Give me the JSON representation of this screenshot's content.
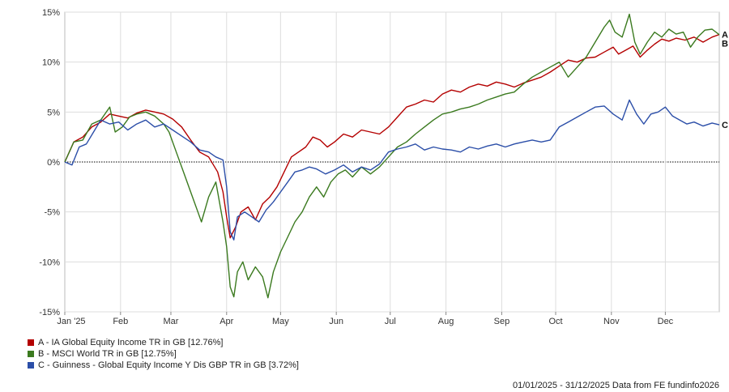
{
  "chart_data": {
    "type": "line",
    "title": "",
    "xlabel": "",
    "ylabel": "",
    "ylim": [
      -15,
      15
    ],
    "yticks": [
      -15,
      -10,
      -5,
      0,
      5,
      10,
      15
    ],
    "ytick_labels": [
      "-15%",
      "-10%",
      "-5%",
      "0%",
      "5%",
      "10%",
      "15%"
    ],
    "x_months": [
      "Jan '25",
      "Feb",
      "Mar",
      "Apr",
      "May",
      "Jun",
      "Jul",
      "Aug",
      "Sep",
      "Oct",
      "Nov",
      "Dec"
    ],
    "x_month_days": [
      0,
      31,
      59,
      90,
      120,
      151,
      181,
      212,
      243,
      273,
      304,
      334
    ],
    "x_range_days": [
      0,
      364
    ],
    "grid": true,
    "series": [
      {
        "id": "A",
        "name": "A - IA Global Equity Income TR in GB [12.76%]",
        "color": "#b40000",
        "points": [
          [
            0,
            0
          ],
          [
            5,
            2
          ],
          [
            10,
            2.5
          ],
          [
            15,
            3.5
          ],
          [
            20,
            4
          ],
          [
            25,
            4.8
          ],
          [
            30,
            4.6
          ],
          [
            35,
            4.4
          ],
          [
            40,
            4.9
          ],
          [
            45,
            5.2
          ],
          [
            50,
            5.0
          ],
          [
            55,
            4.8
          ],
          [
            60,
            4.3
          ],
          [
            65,
            3.5
          ],
          [
            70,
            2.2
          ],
          [
            75,
            1.0
          ],
          [
            80,
            0.5
          ],
          [
            85,
            -1.0
          ],
          [
            88,
            -3.0
          ],
          [
            90,
            -5.5
          ],
          [
            92,
            -7.6
          ],
          [
            95,
            -6.5
          ],
          [
            98,
            -5.0
          ],
          [
            102,
            -4.5
          ],
          [
            106,
            -5.8
          ],
          [
            110,
            -4.2
          ],
          [
            114,
            -3.5
          ],
          [
            118,
            -2.5
          ],
          [
            122,
            -1.0
          ],
          [
            126,
            0.5
          ],
          [
            130,
            1.0
          ],
          [
            134,
            1.5
          ],
          [
            138,
            2.5
          ],
          [
            142,
            2.2
          ],
          [
            146,
            1.5
          ],
          [
            150,
            2.0
          ],
          [
            155,
            2.8
          ],
          [
            160,
            2.5
          ],
          [
            165,
            3.2
          ],
          [
            170,
            3.0
          ],
          [
            175,
            2.8
          ],
          [
            180,
            3.5
          ],
          [
            185,
            4.5
          ],
          [
            190,
            5.5
          ],
          [
            195,
            5.8
          ],
          [
            200,
            6.2
          ],
          [
            205,
            6.0
          ],
          [
            210,
            6.8
          ],
          [
            215,
            7.2
          ],
          [
            220,
            7.0
          ],
          [
            225,
            7.5
          ],
          [
            230,
            7.8
          ],
          [
            235,
            7.6
          ],
          [
            240,
            8.0
          ],
          [
            245,
            7.8
          ],
          [
            250,
            7.5
          ],
          [
            255,
            7.9
          ],
          [
            260,
            8.2
          ],
          [
            265,
            8.5
          ],
          [
            270,
            9.0
          ],
          [
            275,
            9.6
          ],
          [
            280,
            10.2
          ],
          [
            285,
            10.0
          ],
          [
            290,
            10.4
          ],
          [
            295,
            10.5
          ],
          [
            300,
            11.0
          ],
          [
            305,
            11.5
          ],
          [
            308,
            10.8
          ],
          [
            312,
            11.2
          ],
          [
            316,
            11.6
          ],
          [
            320,
            10.5
          ],
          [
            324,
            11.2
          ],
          [
            328,
            11.8
          ],
          [
            332,
            12.3
          ],
          [
            336,
            12.1
          ],
          [
            340,
            12.4
          ],
          [
            345,
            12.2
          ],
          [
            350,
            12.5
          ],
          [
            355,
            12.0
          ],
          [
            360,
            12.5
          ],
          [
            364,
            12.76
          ]
        ]
      },
      {
        "id": "B",
        "name": "B - MSCI World TR in GB [12.75%]",
        "color": "#3b7a1f",
        "points": [
          [
            0,
            0
          ],
          [
            5,
            2
          ],
          [
            10,
            2.2
          ],
          [
            15,
            3.8
          ],
          [
            20,
            4.2
          ],
          [
            25,
            5.5
          ],
          [
            28,
            3.0
          ],
          [
            32,
            3.5
          ],
          [
            36,
            4.5
          ],
          [
            40,
            4.8
          ],
          [
            45,
            5.0
          ],
          [
            50,
            4.6
          ],
          [
            55,
            3.8
          ],
          [
            58,
            3.0
          ],
          [
            62,
            1.0
          ],
          [
            66,
            -1.0
          ],
          [
            70,
            -3.0
          ],
          [
            74,
            -5.0
          ],
          [
            76,
            -6.0
          ],
          [
            80,
            -3.5
          ],
          [
            84,
            -2.0
          ],
          [
            86,
            -4.0
          ],
          [
            88,
            -6.0
          ],
          [
            90,
            -8.5
          ],
          [
            92,
            -12.5
          ],
          [
            94,
            -13.5
          ],
          [
            96,
            -11.0
          ],
          [
            99,
            -10.0
          ],
          [
            102,
            -11.8
          ],
          [
            106,
            -10.5
          ],
          [
            110,
            -11.5
          ],
          [
            113,
            -13.6
          ],
          [
            116,
            -11.0
          ],
          [
            120,
            -9.0
          ],
          [
            124,
            -7.5
          ],
          [
            128,
            -6.0
          ],
          [
            132,
            -5.0
          ],
          [
            136,
            -3.5
          ],
          [
            140,
            -2.5
          ],
          [
            144,
            -3.5
          ],
          [
            148,
            -2.0
          ],
          [
            152,
            -1.2
          ],
          [
            156,
            -0.8
          ],
          [
            160,
            -1.5
          ],
          [
            165,
            -0.5
          ],
          [
            170,
            -1.2
          ],
          [
            175,
            -0.5
          ],
          [
            180,
            0.5
          ],
          [
            185,
            1.5
          ],
          [
            190,
            2.0
          ],
          [
            195,
            2.8
          ],
          [
            200,
            3.5
          ],
          [
            205,
            4.2
          ],
          [
            210,
            4.8
          ],
          [
            215,
            5.0
          ],
          [
            220,
            5.3
          ],
          [
            225,
            5.5
          ],
          [
            230,
            5.8
          ],
          [
            235,
            6.2
          ],
          [
            240,
            6.5
          ],
          [
            245,
            6.8
          ],
          [
            250,
            7.0
          ],
          [
            255,
            7.8
          ],
          [
            260,
            8.5
          ],
          [
            265,
            9.0
          ],
          [
            270,
            9.5
          ],
          [
            275,
            10.0
          ],
          [
            280,
            8.5
          ],
          [
            285,
            9.5
          ],
          [
            290,
            10.5
          ],
          [
            295,
            12.0
          ],
          [
            300,
            13.5
          ],
          [
            303,
            14.2
          ],
          [
            306,
            13.0
          ],
          [
            310,
            12.5
          ],
          [
            314,
            14.8
          ],
          [
            317,
            12.0
          ],
          [
            320,
            10.8
          ],
          [
            324,
            12.0
          ],
          [
            328,
            13.0
          ],
          [
            332,
            12.5
          ],
          [
            336,
            13.3
          ],
          [
            340,
            12.8
          ],
          [
            344,
            13.0
          ],
          [
            348,
            11.5
          ],
          [
            352,
            12.5
          ],
          [
            356,
            13.2
          ],
          [
            360,
            13.3
          ],
          [
            364,
            12.75
          ]
        ]
      },
      {
        "id": "C",
        "name": "C - Guinness - Global Equity Income Y Dis GBP TR in GB [3.72%]",
        "color": "#2b4ea8",
        "points": [
          [
            0,
            0
          ],
          [
            4,
            -0.3
          ],
          [
            8,
            1.5
          ],
          [
            12,
            1.8
          ],
          [
            16,
            3.0
          ],
          [
            20,
            4.2
          ],
          [
            25,
            3.8
          ],
          [
            30,
            4.0
          ],
          [
            35,
            3.2
          ],
          [
            40,
            3.8
          ],
          [
            45,
            4.2
          ],
          [
            50,
            3.5
          ],
          [
            55,
            3.8
          ],
          [
            60,
            3.2
          ],
          [
            65,
            2.6
          ],
          [
            70,
            2.0
          ],
          [
            75,
            1.2
          ],
          [
            80,
            1.0
          ],
          [
            84,
            0.5
          ],
          [
            88,
            0.2
          ],
          [
            90,
            -2.5
          ],
          [
            92,
            -7.0
          ],
          [
            94,
            -7.8
          ],
          [
            96,
            -5.5
          ],
          [
            100,
            -5.0
          ],
          [
            104,
            -5.5
          ],
          [
            108,
            -6.0
          ],
          [
            112,
            -4.8
          ],
          [
            116,
            -4.0
          ],
          [
            120,
            -3.0
          ],
          [
            124,
            -2.0
          ],
          [
            128,
            -1.0
          ],
          [
            132,
            -0.8
          ],
          [
            136,
            -0.5
          ],
          [
            140,
            -0.7
          ],
          [
            145,
            -1.2
          ],
          [
            150,
            -0.8
          ],
          [
            155,
            -0.3
          ],
          [
            160,
            -1.0
          ],
          [
            165,
            -0.5
          ],
          [
            170,
            -0.8
          ],
          [
            175,
            -0.2
          ],
          [
            180,
            1.0
          ],
          [
            185,
            1.3
          ],
          [
            190,
            1.5
          ],
          [
            195,
            1.8
          ],
          [
            200,
            1.2
          ],
          [
            205,
            1.5
          ],
          [
            210,
            1.3
          ],
          [
            215,
            1.2
          ],
          [
            220,
            1.0
          ],
          [
            225,
            1.5
          ],
          [
            230,
            1.3
          ],
          [
            235,
            1.6
          ],
          [
            240,
            1.8
          ],
          [
            245,
            1.5
          ],
          [
            250,
            1.8
          ],
          [
            255,
            2.0
          ],
          [
            260,
            2.2
          ],
          [
            265,
            2.0
          ],
          [
            270,
            2.2
          ],
          [
            275,
            3.5
          ],
          [
            280,
            4.0
          ],
          [
            285,
            4.5
          ],
          [
            290,
            5.0
          ],
          [
            295,
            5.5
          ],
          [
            300,
            5.6
          ],
          [
            305,
            4.8
          ],
          [
            310,
            4.2
          ],
          [
            314,
            6.2
          ],
          [
            318,
            4.8
          ],
          [
            322,
            3.8
          ],
          [
            326,
            4.8
          ],
          [
            330,
            5.0
          ],
          [
            334,
            5.5
          ],
          [
            338,
            4.6
          ],
          [
            342,
            4.2
          ],
          [
            346,
            3.8
          ],
          [
            350,
            4.0
          ],
          [
            355,
            3.6
          ],
          [
            360,
            3.9
          ],
          [
            364,
            3.72
          ]
        ]
      }
    ],
    "end_labels": [
      "A",
      "B",
      "C"
    ]
  },
  "footer": {
    "text": "01/01/2025 - 31/12/2025 Data from FE fundinfo2026"
  }
}
